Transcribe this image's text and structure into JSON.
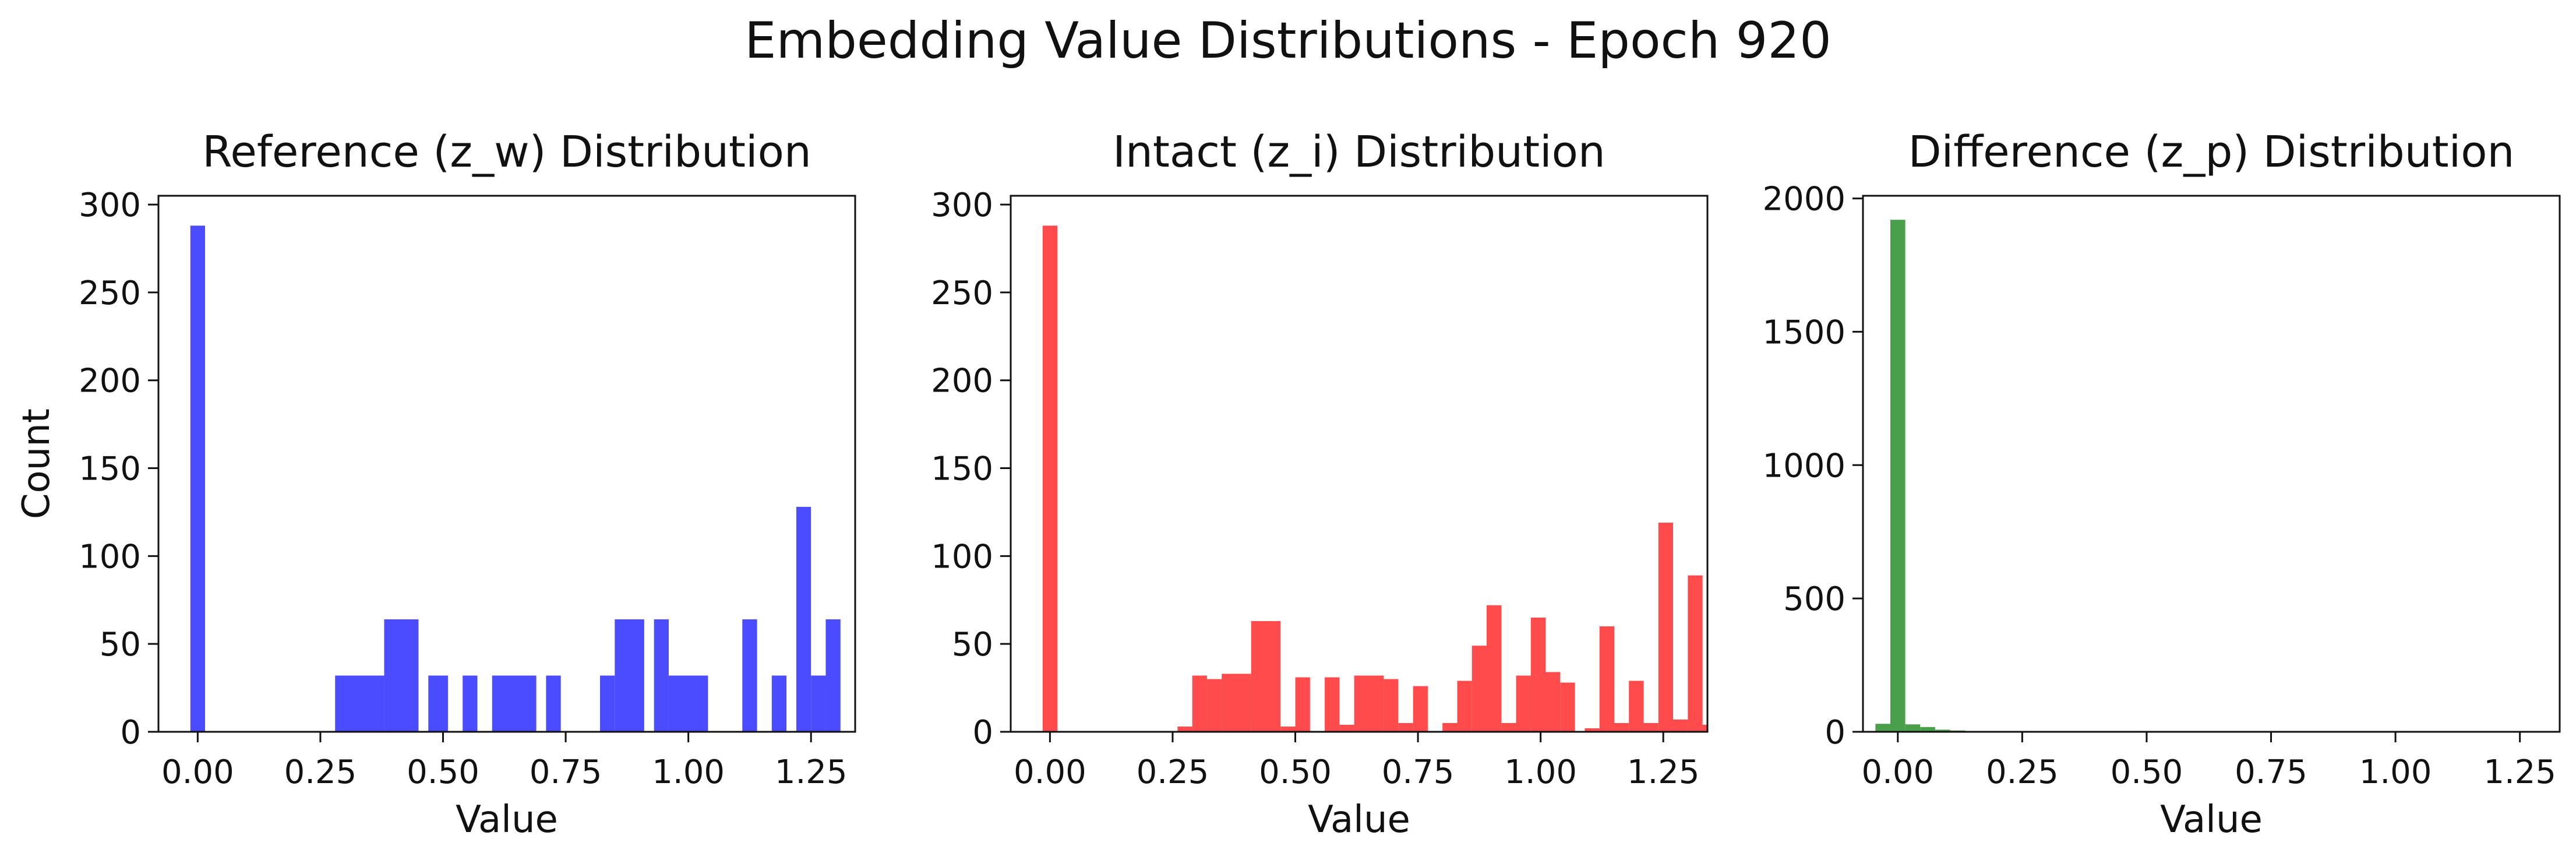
{
  "figure": {
    "title": "Embedding Value Distributions - Epoch 920"
  },
  "chart_data": [
    {
      "type": "bar",
      "title": "Reference (z_w) Distribution",
      "xlabel": "Value",
      "ylabel": "Count",
      "color": "#4b4bff",
      "xlim": [
        -0.08,
        1.34
      ],
      "ylim": [
        0,
        305
      ],
      "xticks": [
        0.0,
        0.25,
        0.5,
        0.75,
        1.0,
        1.25
      ],
      "yticks": [
        0,
        50,
        100,
        150,
        200,
        250,
        300
      ],
      "xtick_labels": [
        "0.00",
        "0.25",
        "0.50",
        "0.75",
        "1.00",
        "1.25"
      ],
      "ytick_labels": [
        "0",
        "50",
        "100",
        "150",
        "200",
        "250",
        "300"
      ],
      "bins": [
        {
          "x0": -0.015,
          "x1": 0.015,
          "count": 288
        },
        {
          "x0": 0.28,
          "x1": 0.38,
          "count": 32
        },
        {
          "x0": 0.38,
          "x1": 0.45,
          "count": 64
        },
        {
          "x0": 0.47,
          "x1": 0.51,
          "count": 32
        },
        {
          "x0": 0.54,
          "x1": 0.57,
          "count": 32
        },
        {
          "x0": 0.6,
          "x1": 0.69,
          "count": 32
        },
        {
          "x0": 0.71,
          "x1": 0.74,
          "count": 32
        },
        {
          "x0": 0.82,
          "x1": 0.85,
          "count": 32
        },
        {
          "x0": 0.85,
          "x1": 0.91,
          "count": 64
        },
        {
          "x0": 0.93,
          "x1": 0.96,
          "count": 64
        },
        {
          "x0": 0.96,
          "x1": 1.04,
          "count": 32
        },
        {
          "x0": 1.11,
          "x1": 1.14,
          "count": 64
        },
        {
          "x0": 1.17,
          "x1": 1.2,
          "count": 32
        },
        {
          "x0": 1.22,
          "x1": 1.25,
          "count": 128
        },
        {
          "x0": 1.25,
          "x1": 1.28,
          "count": 32
        },
        {
          "x0": 1.28,
          "x1": 1.31,
          "count": 64
        }
      ]
    },
    {
      "type": "bar",
      "title": "Intact (z_i) Distribution",
      "xlabel": "Value",
      "ylabel": "",
      "color": "#ff4b4b",
      "xlim": [
        -0.08,
        1.34
      ],
      "ylim": [
        0,
        305
      ],
      "xticks": [
        0.0,
        0.25,
        0.5,
        0.75,
        1.0,
        1.25
      ],
      "yticks": [
        0,
        50,
        100,
        150,
        200,
        250,
        300
      ],
      "xtick_labels": [
        "0.00",
        "0.25",
        "0.50",
        "0.75",
        "1.00",
        "1.25"
      ],
      "ytick_labels": [
        "0",
        "50",
        "100",
        "150",
        "200",
        "250",
        "300"
      ],
      "bins": [
        {
          "x0": -0.015,
          "x1": 0.015,
          "count": 288
        },
        {
          "x0": 0.26,
          "x1": 0.29,
          "count": 3
        },
        {
          "x0": 0.29,
          "x1": 0.32,
          "count": 32
        },
        {
          "x0": 0.32,
          "x1": 0.35,
          "count": 30
        },
        {
          "x0": 0.35,
          "x1": 0.41,
          "count": 33
        },
        {
          "x0": 0.41,
          "x1": 0.47,
          "count": 63
        },
        {
          "x0": 0.47,
          "x1": 0.5,
          "count": 3
        },
        {
          "x0": 0.5,
          "x1": 0.53,
          "count": 31
        },
        {
          "x0": 0.56,
          "x1": 0.59,
          "count": 31
        },
        {
          "x0": 0.59,
          "x1": 0.62,
          "count": 4
        },
        {
          "x0": 0.62,
          "x1": 0.68,
          "count": 32
        },
        {
          "x0": 0.68,
          "x1": 0.71,
          "count": 30
        },
        {
          "x0": 0.71,
          "x1": 0.74,
          "count": 5
        },
        {
          "x0": 0.74,
          "x1": 0.77,
          "count": 26
        },
        {
          "x0": 0.8,
          "x1": 0.83,
          "count": 5
        },
        {
          "x0": 0.83,
          "x1": 0.86,
          "count": 29
        },
        {
          "x0": 0.86,
          "x1": 0.89,
          "count": 49
        },
        {
          "x0": 0.89,
          "x1": 0.92,
          "count": 72
        },
        {
          "x0": 0.92,
          "x1": 0.95,
          "count": 5
        },
        {
          "x0": 0.95,
          "x1": 0.98,
          "count": 32
        },
        {
          "x0": 0.98,
          "x1": 1.01,
          "count": 65
        },
        {
          "x0": 1.01,
          "x1": 1.04,
          "count": 34
        },
        {
          "x0": 1.04,
          "x1": 1.07,
          "count": 28
        },
        {
          "x0": 1.09,
          "x1": 1.12,
          "count": 2
        },
        {
          "x0": 1.12,
          "x1": 1.15,
          "count": 60
        },
        {
          "x0": 1.15,
          "x1": 1.18,
          "count": 5
        },
        {
          "x0": 1.18,
          "x1": 1.21,
          "count": 29
        },
        {
          "x0": 1.21,
          "x1": 1.24,
          "count": 5
        },
        {
          "x0": 1.24,
          "x1": 1.27,
          "count": 119
        },
        {
          "x0": 1.27,
          "x1": 1.3,
          "count": 7
        },
        {
          "x0": 1.3,
          "x1": 1.33,
          "count": 89
        },
        {
          "x0": 1.33,
          "x1": 1.34,
          "count": 4
        }
      ]
    },
    {
      "type": "bar",
      "title": "Difference (z_p) Distribution",
      "xlabel": "Value",
      "ylabel": "",
      "color": "#4a9f4a",
      "xlim": [
        -0.07,
        1.33
      ],
      "ylim": [
        0,
        2010
      ],
      "xticks": [
        0.0,
        0.25,
        0.5,
        0.75,
        1.0,
        1.25
      ],
      "yticks": [
        0,
        500,
        1000,
        1500,
        2000
      ],
      "xtick_labels": [
        "0.00",
        "0.25",
        "0.50",
        "0.75",
        "1.00",
        "1.25"
      ],
      "ytick_labels": [
        "0",
        "500",
        "1000",
        "1500",
        "2000"
      ],
      "bins": [
        {
          "x0": -0.045,
          "x1": -0.015,
          "count": 30
        },
        {
          "x0": -0.015,
          "x1": 0.015,
          "count": 1920
        },
        {
          "x0": 0.015,
          "x1": 0.045,
          "count": 28
        },
        {
          "x0": 0.045,
          "x1": 0.075,
          "count": 18
        },
        {
          "x0": 0.075,
          "x1": 0.105,
          "count": 8
        },
        {
          "x0": 0.105,
          "x1": 0.135,
          "count": 5
        }
      ]
    }
  ]
}
